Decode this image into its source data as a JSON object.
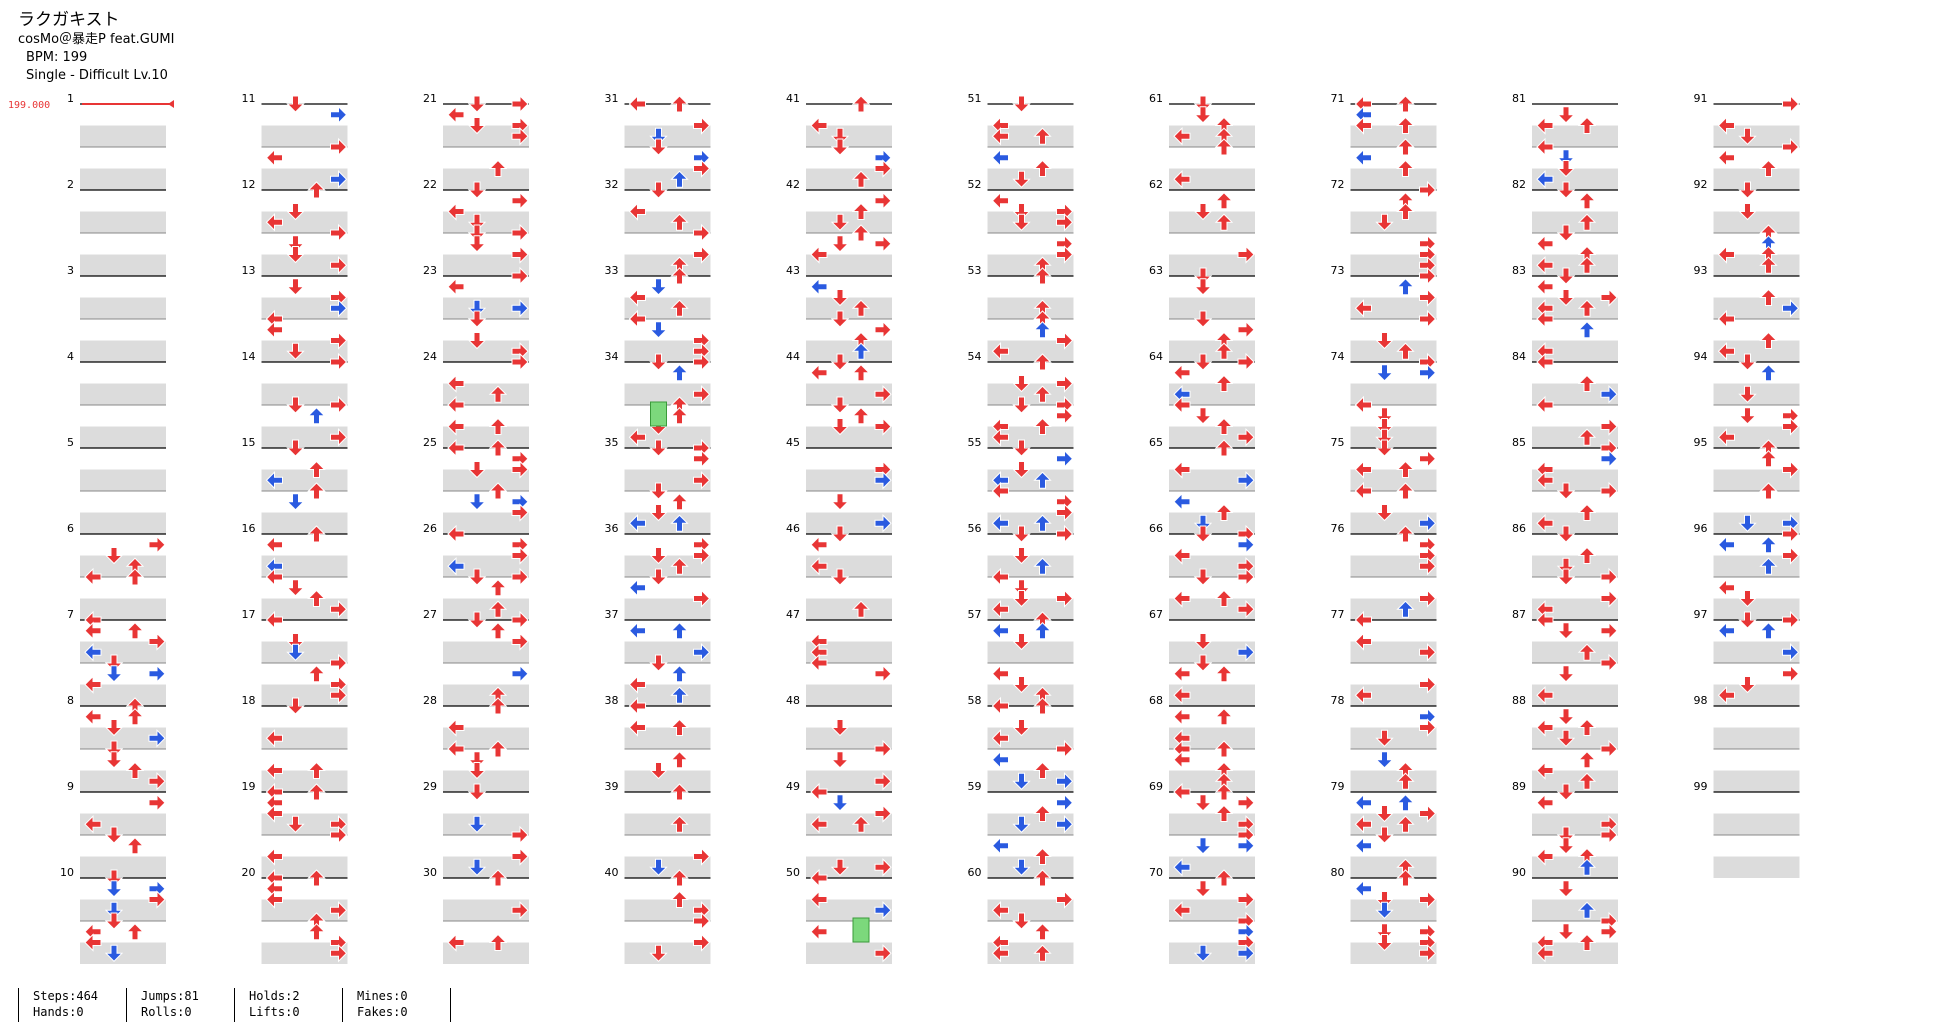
{
  "song": {
    "title": "ラクガキスト",
    "artist": "cosMo＠暴走P feat.GUMI",
    "bpm_text": "BPM: 199",
    "difficulty_text": "Single - Difficult  Lv.10",
    "bpm_marker": "199.000"
  },
  "chart_data": {
    "type": "step-chart",
    "total_measures": 99,
    "measures_per_column": 10,
    "colors": {
      "note_red": "#e83535",
      "note_blue": "#2a5ae0",
      "hold_green": "#7cd87c",
      "lane_shade": "#dcdcdc"
    }
  },
  "stats": [
    {
      "top": "Steps:464",
      "bottom": "Hands:0"
    },
    {
      "top": "Jumps:81",
      "bottom": "Rolls:0"
    },
    {
      "top": "Holds:2",
      "bottom": "Lifts:0"
    },
    {
      "top": "Mines:0",
      "bottom": "Fakes:0"
    }
  ]
}
